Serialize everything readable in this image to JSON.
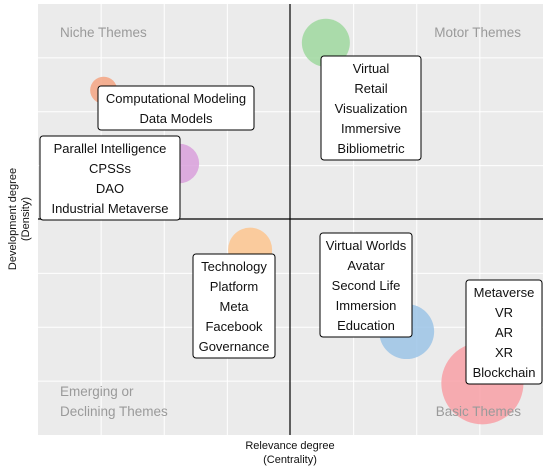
{
  "chart_data": {
    "type": "scatter",
    "variant": "strategic-diagram-bubble",
    "xlabel": "Relevance degree",
    "xlabel_sub": "(Centrality)",
    "ylabel": "Development degree",
    "ylabel_sub": "(Density)",
    "grid": true,
    "background_color": "#ebebeb",
    "quadrants": {
      "top_left": "Niche Themes",
      "top_right": "Motor Themes",
      "bottom_left_line1": "Emerging or",
      "bottom_left_line2": "Declining Themes",
      "bottom_right": "Basic Themes"
    },
    "clusters": [
      {
        "terms": [
          "Computational Modeling",
          "Data Models"
        ],
        "x": 0.13,
        "y": 0.8,
        "size": 1,
        "color": "#f4a582"
      },
      {
        "terms": [
          "Parallel Intelligence",
          "CPSSs",
          "DAO",
          "Industrial Metaverse"
        ],
        "x": 0.28,
        "y": 0.63,
        "size": 3,
        "color": "#d9a0dc"
      },
      {
        "terms": [
          "Virtual",
          "Retail",
          "Visualization",
          "Immersive",
          "Bibliometric"
        ],
        "x": 0.57,
        "y": 0.91,
        "size": 5,
        "color": "#9fd89f"
      },
      {
        "terms": [
          "Technology",
          "Platform",
          "Meta",
          "Facebook",
          "Governance"
        ],
        "x": 0.42,
        "y": 0.43,
        "size": 4,
        "color": "#fdc58f"
      },
      {
        "terms": [
          "Virtual Worlds",
          "Avatar",
          "Second Life",
          "Immersion",
          "Education"
        ],
        "x": 0.73,
        "y": 0.24,
        "size": 7,
        "color": "#9cc4e6"
      },
      {
        "terms": [
          "Metaverse",
          "VR",
          "AR",
          "XR",
          "Blockchain"
        ],
        "x": 0.88,
        "y": 0.12,
        "size": 18,
        "color": "#f8a0a6"
      }
    ]
  }
}
